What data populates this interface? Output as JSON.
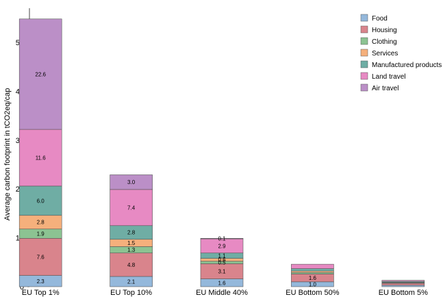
{
  "chart_data": {
    "type": "bar",
    "stacked": true,
    "title": "",
    "xlabel": "",
    "ylabel": "Average carbon footprint in tCO2eq/cap",
    "ylim": [
      0,
      57
    ],
    "yticks": [
      0,
      10,
      20,
      30,
      40,
      50
    ],
    "grid": false,
    "legend_position": "top-right",
    "categories": [
      "EU Top 1%",
      "EU Top 10%",
      "EU Middle 40%",
      "EU Bottom 50%",
      "EU Bottom 5%"
    ],
    "series": [
      {
        "name": "Food",
        "color": "#94b8db",
        "values": [
          2.3,
          2.1,
          1.6,
          1.0,
          0.3
        ],
        "labels": [
          "2.3",
          "2.1",
          "1.6",
          "1.0",
          ""
        ]
      },
      {
        "name": "Housing",
        "color": "#d9848c",
        "values": [
          7.6,
          4.8,
          3.1,
          1.6,
          0.4
        ],
        "labels": [
          "7.6",
          "4.8",
          "3.1",
          "1.6",
          ""
        ]
      },
      {
        "name": "Clothing",
        "color": "#8cc392",
        "values": [
          1.9,
          1.3,
          0.5,
          0.3,
          0.1
        ],
        "labels": [
          "1.9",
          "1.3",
          "0.5",
          "",
          ""
        ]
      },
      {
        "name": "Services",
        "color": "#f5b07c",
        "values": [
          2.8,
          1.5,
          0.6,
          0.3,
          0.1
        ],
        "labels": [
          "2.8",
          "1.5",
          "0.6",
          "",
          ""
        ]
      },
      {
        "name": "Manufactured products",
        "color": "#6fada4",
        "values": [
          6.0,
          2.8,
          1.1,
          0.5,
          0.2
        ],
        "labels": [
          "6.0",
          "2.8",
          "1.1",
          "",
          ""
        ]
      },
      {
        "name": "Land travel",
        "color": "#e78ac3",
        "values": [
          11.6,
          7.4,
          2.9,
          0.9,
          0.2
        ],
        "labels": [
          "11.6",
          "7.4",
          "2.9",
          "",
          ""
        ]
      },
      {
        "name": "Air travel",
        "color": "#bb8fc7",
        "values": [
          22.6,
          3.0,
          0.1,
          0.0,
          0.0
        ],
        "labels": [
          "22.6",
          "3.0",
          "0.1",
          "",
          ""
        ]
      }
    ]
  }
}
